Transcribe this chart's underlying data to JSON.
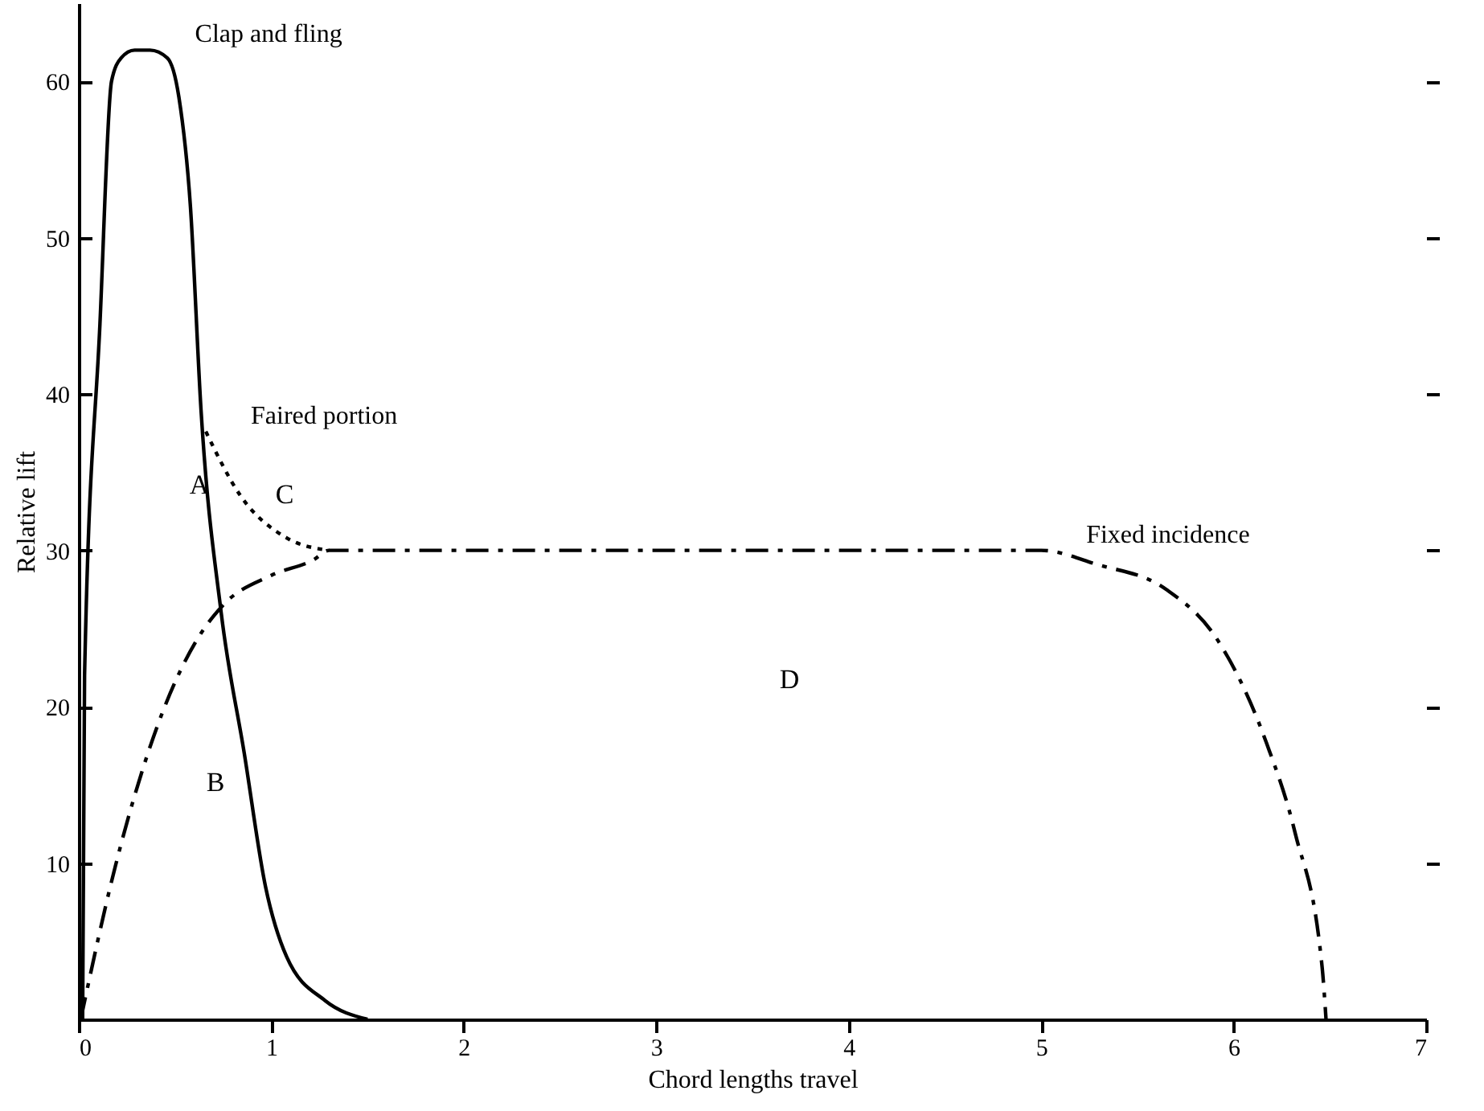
{
  "chart_data": {
    "type": "line",
    "xlabel": "Chord lengths travel",
    "ylabel": "Relative lift",
    "xlim": [
      0,
      7
    ],
    "xticks": [
      0,
      1,
      2,
      3,
      4,
      5,
      6,
      7
    ],
    "ylim": [
      0,
      65
    ],
    "yticks": [
      {
        "value": 0,
        "label": null
      },
      10,
      20,
      30,
      40,
      50,
      60
    ],
    "grid": false,
    "legend": false,
    "marker": "none",
    "series": [
      {
        "name": "Clap and fling",
        "color": "#000000",
        "line_style": "solid",
        "x": [
          0.02,
          0.03,
          0.11,
          0.17,
          0.22,
          0.29,
          0.37,
          0.46,
          0.52,
          0.58,
          0.635,
          0.74,
          0.86,
          0.97,
          1.08,
          1.28,
          1.5
        ],
        "values": [
          0,
          22,
          44.5,
          60,
          61.5,
          62,
          62,
          61.5,
          59,
          52,
          39,
          26,
          17,
          8.5,
          4,
          1.2,
          0
        ]
      },
      {
        "name": "Faired portion",
        "color": "#000000",
        "line_style": "dotted",
        "x": [
          0.66,
          0.84,
          1.08,
          1.3
        ],
        "values": [
          37.6,
          33.5,
          30.8,
          30
        ]
      },
      {
        "name": "Fixed incidence",
        "color": "#000000",
        "line_style": "dashed",
        "x": [
          0.01,
          0.19,
          0.44,
          0.61,
          0.75,
          1.0,
          1.22,
          1.3,
          3.0,
          5.0,
          5.29,
          5.65,
          5.92,
          6.17,
          6.32,
          6.46,
          6.48
        ],
        "values": [
          0,
          9.8,
          19.8,
          24.2,
          26.5,
          28.4,
          29.4,
          30,
          30,
          30,
          29.1,
          27.5,
          24.2,
          17.7,
          11.9,
          3.3,
          0
        ]
      }
    ],
    "annotations": [
      "A",
      "B",
      "C",
      "D"
    ]
  }
}
